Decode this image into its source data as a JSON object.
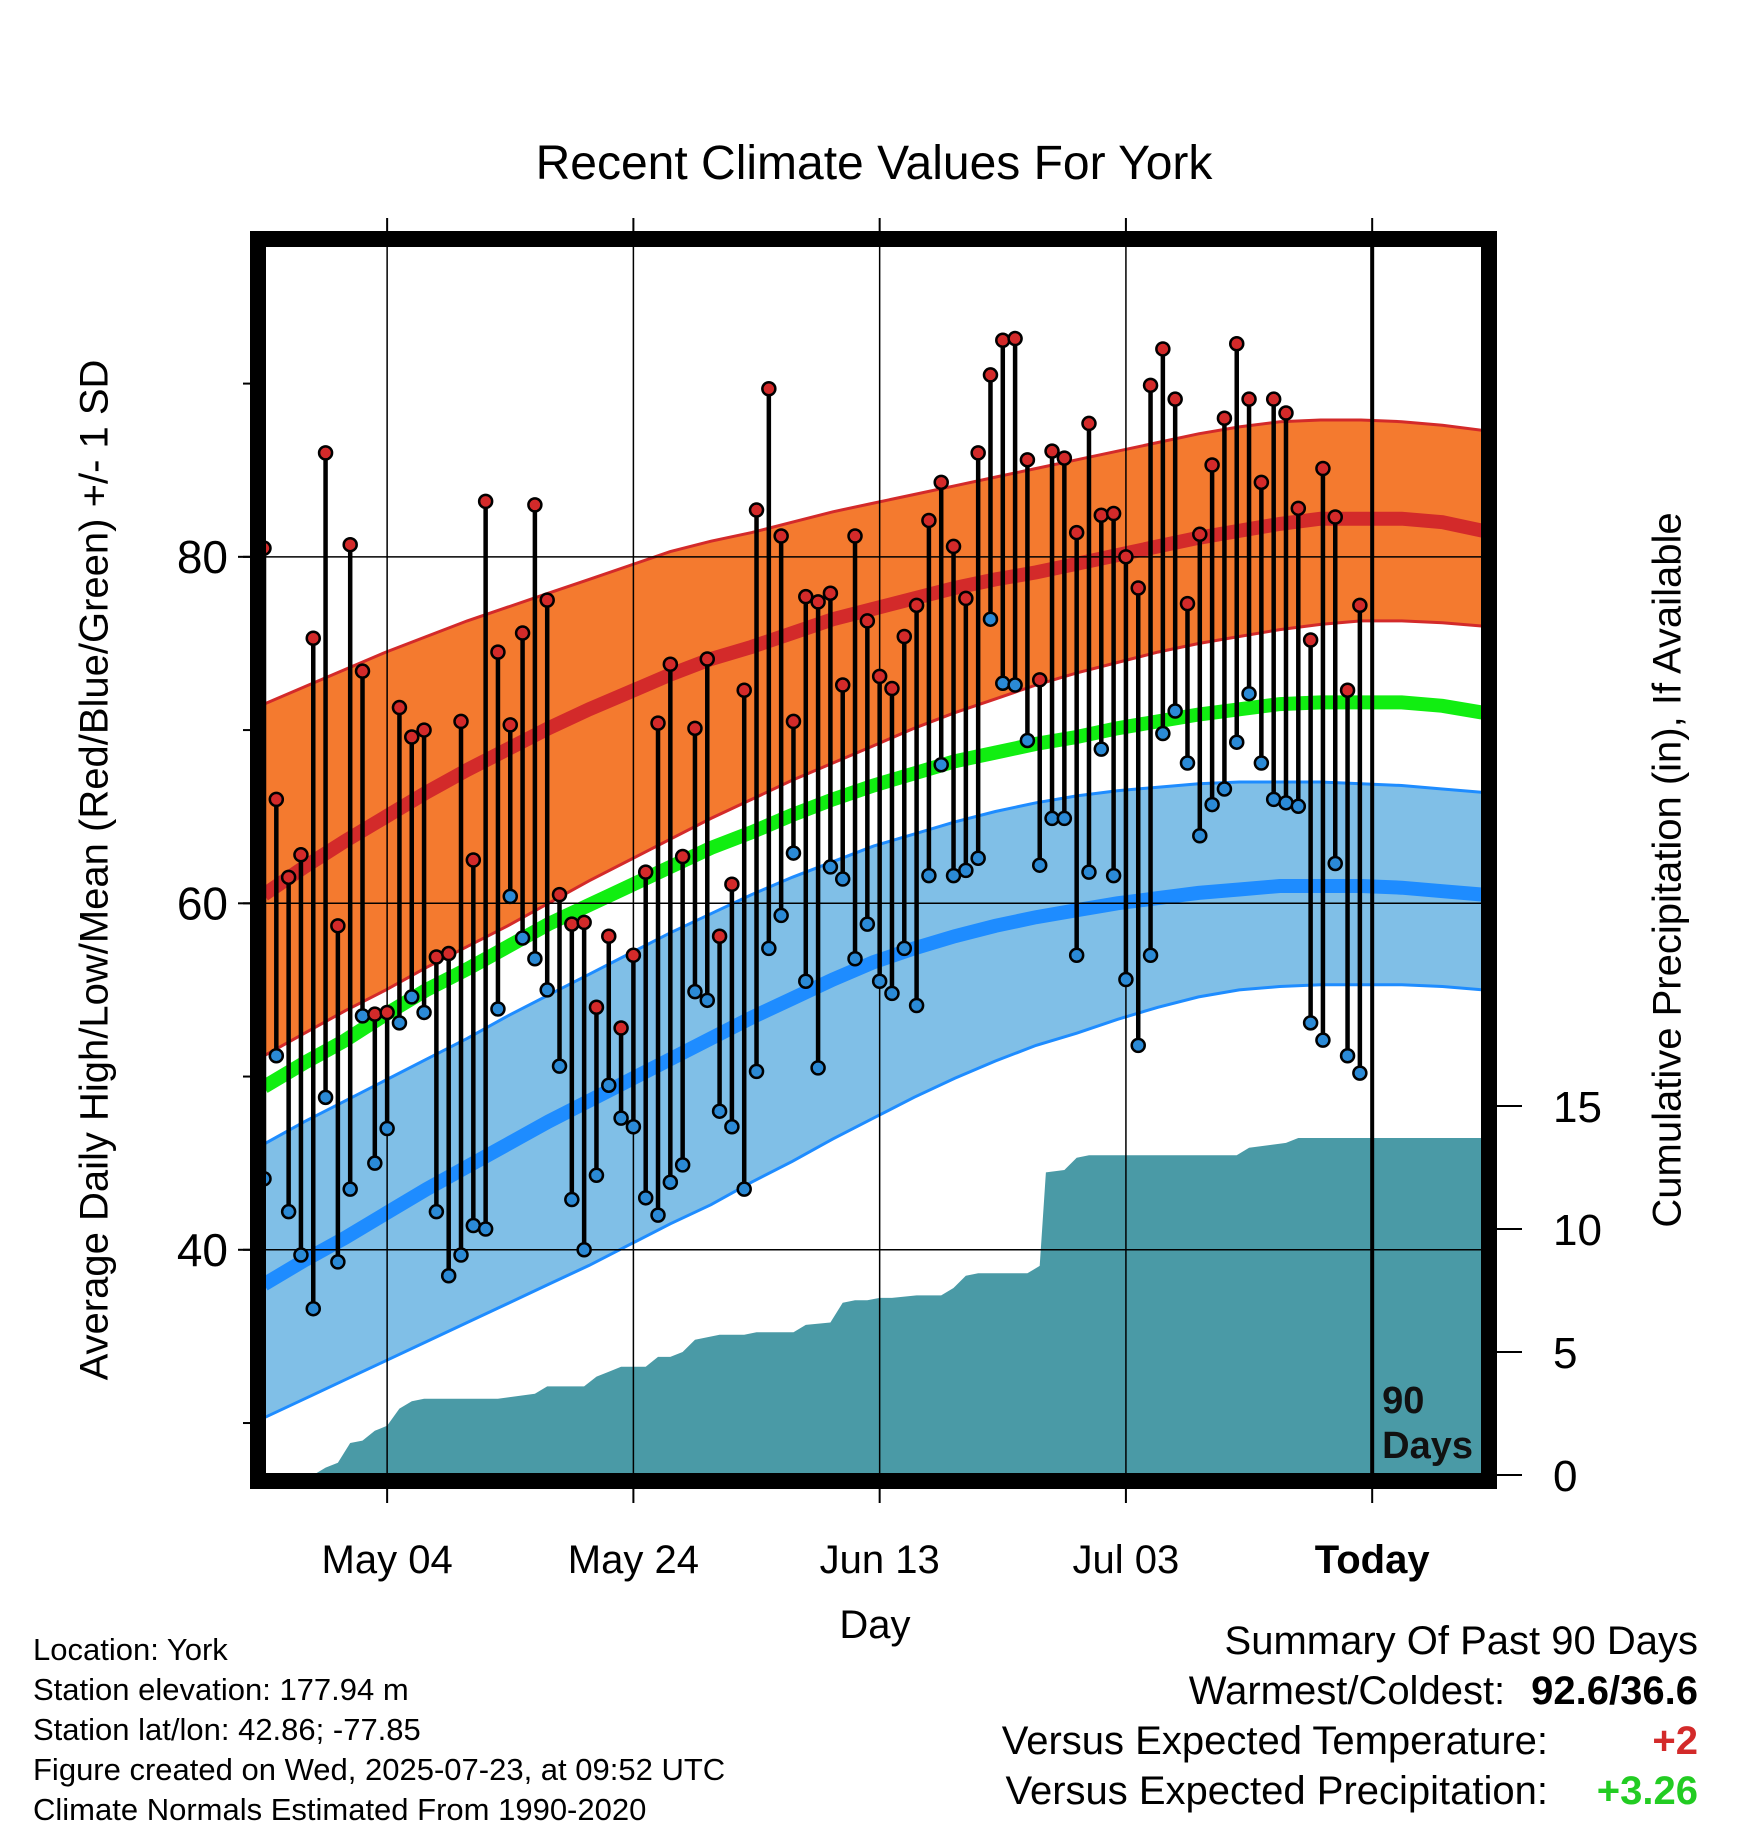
{
  "title": "Recent Climate Values For York",
  "ylabel_left": "Average Daily High/Low/Mean (Red/Blue/Green) +/- 1 SD",
  "ylabel_right": "Cumulative Precipitation (in), If Available",
  "xlabel": "Day",
  "info": {
    "location": "Location: York",
    "elevation": "Station elevation: 177.94 m",
    "latlon": "Station lat/lon: 42.86; -77.85",
    "created": "Figure created on Wed, 2025-07-23, at 09:52 UTC",
    "normals": "Climate Normals Estimated From 1990-2020"
  },
  "summary": {
    "heading": "Summary Of Past 90 Days",
    "warmest_label": "Warmest/Coldest:",
    "warmest_value": "92.6/36.6",
    "temp_label": "Versus Expected Temperature:",
    "temp_value": "+2",
    "precip_label": "Versus Expected Precipitation:",
    "precip_value": "+3.26"
  },
  "colors": {
    "high_band": "#f47a2f",
    "high_mean": "#d32a2a",
    "low_band": "#80bfe7",
    "low_mean": "#1e8cff",
    "mean_line": "#11ee11",
    "precip_fill": "#4a9aa6",
    "high_dot": "#d32a2a",
    "low_dot": "#2b8ad6",
    "temp_positive": "#d32a2a",
    "precip_positive": "#22cc22"
  },
  "chart_data": {
    "type": "line",
    "x_unit": "day",
    "x_ticks": [
      {
        "day": 10,
        "label": "May 04"
      },
      {
        "day": 30,
        "label": "May 24"
      },
      {
        "day": 50,
        "label": "Jun 13"
      },
      {
        "day": 70,
        "label": "Jul 03"
      },
      {
        "day": 90,
        "label": "Today"
      }
    ],
    "today_marker": {
      "day": 90,
      "label_line1": "90",
      "label_line2": "Days"
    },
    "xlim": [
      0,
      99
    ],
    "ylim_temp": [
      27,
      98
    ],
    "yticks_temp": [
      40,
      60,
      80
    ],
    "ylim_precip": [
      0,
      50
    ],
    "yticks_precip": [
      0,
      5,
      10,
      15
    ],
    "grid": true,
    "normal_high": [
      60.5,
      62.1,
      63.6,
      65.0,
      66.4,
      67.7,
      68.9,
      70.1,
      71.2,
      72.2,
      73.2,
      74.1,
      74.8,
      75.6,
      76.4,
      77.0,
      77.6,
      78.2,
      78.7,
      79.1,
      79.6,
      80.1,
      80.6,
      81.1,
      81.5,
      81.9,
      82.2,
      82.2,
      82.2,
      82.0,
      81.5
    ],
    "normal_high_sd_upper": [
      71.5,
      72.5,
      73.5,
      74.5,
      75.4,
      76.3,
      77.1,
      77.9,
      78.7,
      79.5,
      80.3,
      80.9,
      81.4,
      82.0,
      82.6,
      83.1,
      83.6,
      84.1,
      84.6,
      85.1,
      85.6,
      86.1,
      86.6,
      87.1,
      87.5,
      87.8,
      87.9,
      87.9,
      87.8,
      87.6,
      87.3
    ],
    "normal_high_sd_lower": [
      51.2,
      52.5,
      53.8,
      55.0,
      56.3,
      57.5,
      58.7,
      60.0,
      61.3,
      62.5,
      63.7,
      64.9,
      66.0,
      67.1,
      68.1,
      69.1,
      70.1,
      71.0,
      71.8,
      72.6,
      73.3,
      73.9,
      74.5,
      75.0,
      75.4,
      75.8,
      76.1,
      76.3,
      76.3,
      76.2,
      76.0
    ],
    "normal_low": [
      38.0,
      39.4,
      40.7,
      42.1,
      43.5,
      44.8,
      46.1,
      47.4,
      48.6,
      49.8,
      51.0,
      52.2,
      53.4,
      54.5,
      55.6,
      56.6,
      57.4,
      58.1,
      58.7,
      59.2,
      59.6,
      60.0,
      60.3,
      60.6,
      60.8,
      61.0,
      61.0,
      61.0,
      60.9,
      60.7,
      60.5
    ],
    "normal_low_sd_upper": [
      46.1,
      47.4,
      48.6,
      49.8,
      51.0,
      52.2,
      53.5,
      54.7,
      55.9,
      57.1,
      58.3,
      59.4,
      60.5,
      61.5,
      62.4,
      63.3,
      64.0,
      64.7,
      65.3,
      65.8,
      66.2,
      66.5,
      66.7,
      66.9,
      67.0,
      67.0,
      67.0,
      66.9,
      66.8,
      66.6,
      66.4
    ],
    "normal_low_sd_lower": [
      30.3,
      31.4,
      32.5,
      33.6,
      34.7,
      35.8,
      36.9,
      38.0,
      39.1,
      40.3,
      41.5,
      42.6,
      43.9,
      45.1,
      46.4,
      47.6,
      48.8,
      49.9,
      50.9,
      51.8,
      52.5,
      53.3,
      54.0,
      54.6,
      55.0,
      55.2,
      55.3,
      55.3,
      55.3,
      55.2,
      55.0
    ],
    "normal_mean": [
      49.4,
      50.8,
      52.1,
      53.6,
      55.0,
      56.2,
      57.5,
      58.8,
      59.9,
      61.0,
      62.1,
      63.2,
      64.1,
      65.1,
      66.0,
      66.8,
      67.5,
      68.2,
      68.7,
      69.2,
      69.6,
      70.1,
      70.5,
      70.9,
      71.2,
      71.5,
      71.6,
      71.6,
      71.6,
      71.4,
      71.0
    ],
    "normal_step_days": 3.3,
    "observed_high": [
      80.5,
      66.0,
      61.5,
      62.8,
      75.3,
      86.0,
      58.7,
      80.7,
      73.4,
      53.6,
      53.7,
      71.3,
      69.6,
      70.0,
      56.9,
      57.1,
      70.5,
      62.5,
      83.2,
      74.5,
      70.3,
      75.6,
      83.0,
      77.5,
      60.5,
      58.8,
      58.9,
      54.0,
      58.1,
      52.8,
      57.0,
      61.8,
      70.4,
      73.8,
      62.7,
      70.1,
      74.1,
      58.1,
      61.1,
      72.3,
      82.7,
      89.7,
      81.2,
      70.5,
      77.7,
      77.4,
      77.9,
      72.6,
      81.2,
      76.3,
      73.1,
      72.4,
      75.4,
      77.2,
      82.1,
      84.3,
      80.6,
      77.6,
      86.0,
      90.5,
      92.5,
      92.6,
      85.6,
      72.9,
      86.1,
      85.7,
      81.4,
      87.7,
      82.4,
      82.5,
      80.0,
      78.2,
      89.9,
      92.0,
      89.1,
      77.3,
      81.3,
      85.3,
      88.0,
      92.3,
      89.1,
      84.3,
      89.1,
      88.3,
      82.8,
      75.2,
      85.1,
      82.3,
      72.3,
      77.2
    ],
    "observed_low": [
      44.1,
      51.2,
      42.2,
      39.7,
      36.6,
      48.8,
      39.3,
      43.5,
      53.5,
      45.0,
      47.0,
      53.1,
      54.6,
      53.7,
      42.2,
      38.5,
      39.7,
      41.4,
      41.2,
      53.9,
      60.4,
      58.0,
      56.8,
      55.0,
      50.6,
      42.9,
      40.0,
      44.3,
      49.5,
      47.6,
      47.1,
      43.0,
      42.0,
      43.9,
      44.9,
      54.9,
      54.4,
      48.0,
      47.1,
      43.5,
      50.3,
      57.4,
      59.3,
      62.9,
      55.5,
      50.5,
      62.1,
      61.4,
      56.8,
      58.8,
      55.5,
      54.8,
      57.4,
      54.1,
      61.6,
      68.0,
      61.6,
      61.9,
      62.6,
      76.4,
      72.7,
      72.6,
      69.4,
      62.2,
      64.9,
      64.9,
      57.0,
      61.8,
      68.9,
      61.6,
      55.6,
      51.8,
      57.0,
      69.8,
      71.1,
      68.1,
      63.9,
      65.7,
      66.6,
      69.3,
      72.1,
      68.1,
      66.0,
      65.8,
      65.6,
      53.1,
      52.1,
      62.3,
      51.2,
      50.2
    ],
    "cumulative_precip": [
      [
        0,
        0
      ],
      [
        4,
        0
      ],
      [
        5,
        0.3
      ],
      [
        6,
        0.5
      ],
      [
        7,
        1.3
      ],
      [
        8,
        1.4
      ],
      [
        9,
        1.8
      ],
      [
        10,
        2.0
      ],
      [
        11,
        2.7
      ],
      [
        12,
        3.0
      ],
      [
        13,
        3.1
      ],
      [
        19,
        3.1
      ],
      [
        22,
        3.3
      ],
      [
        23,
        3.6
      ],
      [
        26,
        3.6
      ],
      [
        27,
        4.0
      ],
      [
        28,
        4.2
      ],
      [
        29,
        4.4
      ],
      [
        31,
        4.4
      ],
      [
        32,
        4.8
      ],
      [
        33,
        4.8
      ],
      [
        34,
        5.0
      ],
      [
        35,
        5.5
      ],
      [
        36,
        5.6
      ],
      [
        37,
        5.7
      ],
      [
        39,
        5.7
      ],
      [
        40,
        5.8
      ],
      [
        43,
        5.8
      ],
      [
        44,
        6.1
      ],
      [
        46,
        6.2
      ],
      [
        47,
        7.0
      ],
      [
        48,
        7.1
      ],
      [
        49,
        7.1
      ],
      [
        50,
        7.2
      ],
      [
        51,
        7.2
      ],
      [
        53,
        7.3
      ],
      [
        55,
        7.3
      ],
      [
        56,
        7.6
      ],
      [
        57,
        8.1
      ],
      [
        58,
        8.2
      ],
      [
        62,
        8.2
      ],
      [
        63,
        8.5
      ],
      [
        63.5,
        12.3
      ],
      [
        65,
        12.4
      ],
      [
        66,
        12.9
      ],
      [
        67,
        13.0
      ],
      [
        73,
        13.0
      ],
      [
        79,
        13.0
      ],
      [
        80,
        13.3
      ],
      [
        83,
        13.5
      ],
      [
        84,
        13.7
      ],
      [
        99,
        13.7
      ]
    ]
  }
}
